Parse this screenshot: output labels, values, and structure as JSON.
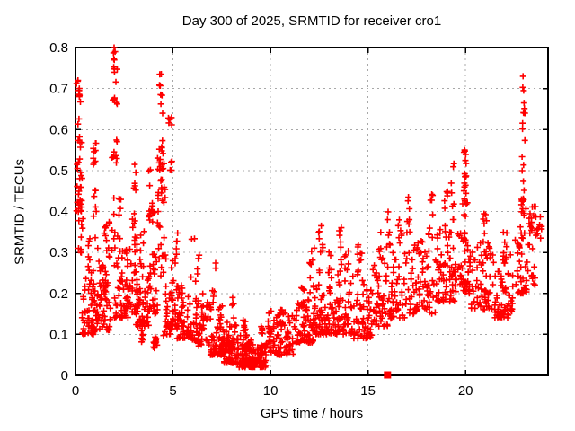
{
  "chart_data": {
    "type": "scatter",
    "title": "Day 300 of 2025, SRMTID for receiver cro1",
    "xlabel": "GPS time / hours",
    "ylabel": "SRMTID / TECUs",
    "xlim": [
      0,
      24.23
    ],
    "ylim": [
      0,
      0.8
    ],
    "x_ticks": [
      0,
      5,
      10,
      15,
      20
    ],
    "x_tick_labels": [
      "0",
      "5",
      "10",
      "15",
      "20"
    ],
    "y_ticks": [
      0,
      0.1,
      0.2,
      0.3,
      0.4,
      0.5,
      0.6,
      0.7,
      0.8
    ],
    "y_tick_labels": [
      "0",
      "0.1",
      "0.2",
      "0.3",
      "0.4",
      "0.5",
      "0.6",
      "0.7",
      "0.8"
    ],
    "grid": true,
    "grid_style": "dotted",
    "legend": "none",
    "marker": {
      "symbol": "plus",
      "color": "#ff0000",
      "size": 7
    },
    "colors": {
      "frame": "#000000",
      "grid": "#a8a8a8",
      "text": "#000000",
      "background": "#ffffff"
    },
    "special_points": [
      {
        "x": 16,
        "y": 0,
        "symbol": "filled-square",
        "color": "#ff0000",
        "size": 8
      }
    ],
    "anchor_points": [
      [
        1.98,
        0.8
      ],
      [
        2.03,
        0.79
      ],
      [
        1.99,
        0.77
      ],
      [
        2.0,
        0.74
      ],
      [
        0.13,
        0.72
      ],
      [
        0.2,
        0.7
      ],
      [
        0.17,
        0.695
      ],
      [
        0.1,
        0.505
      ],
      [
        0.15,
        0.52
      ],
      [
        4.32,
        0.735
      ],
      [
        22.95,
        0.73
      ],
      [
        22.98,
        0.695
      ],
      [
        23.0,
        0.665
      ],
      [
        19.95,
        0.55
      ],
      [
        16.0,
        0.38
      ]
    ],
    "cluster_format": "[x_start_hours, x_end_hours, y_min_TECU, y_max_TECU, point_count, vertical_distribution(b=bottom-heavy,u=uniform,m=middle,t=top-heavy)]",
    "seed": 7,
    "point_clusters": [
      [
        0.05,
        0.35,
        0.4,
        0.58,
        26,
        "b"
      ],
      [
        0.05,
        0.3,
        0.58,
        0.72,
        10,
        "u"
      ],
      [
        0.1,
        0.45,
        0.28,
        0.4,
        10,
        "u"
      ],
      [
        0.3,
        1.0,
        0.1,
        0.26,
        55,
        "b"
      ],
      [
        0.55,
        0.75,
        0.26,
        0.34,
        6,
        "u"
      ],
      [
        0.85,
        1.1,
        0.48,
        0.58,
        9,
        "u"
      ],
      [
        0.9,
        1.15,
        0.3,
        0.46,
        8,
        "u"
      ],
      [
        1.0,
        1.8,
        0.11,
        0.28,
        65,
        "b"
      ],
      [
        1.45,
        1.75,
        0.28,
        0.42,
        12,
        "u"
      ],
      [
        1.9,
        2.15,
        0.55,
        0.8,
        13,
        "u"
      ],
      [
        1.85,
        2.2,
        0.3,
        0.55,
        12,
        "u"
      ],
      [
        2.0,
        2.7,
        0.14,
        0.32,
        55,
        "b"
      ],
      [
        2.15,
        2.35,
        0.32,
        0.44,
        7,
        "u"
      ],
      [
        2.9,
        3.15,
        0.3,
        0.52,
        16,
        "u"
      ],
      [
        2.6,
        3.2,
        0.15,
        0.32,
        35,
        "b"
      ],
      [
        3.1,
        3.8,
        0.12,
        0.26,
        45,
        "b"
      ],
      [
        3.3,
        3.6,
        0.26,
        0.36,
        8,
        "u"
      ],
      [
        3.3,
        3.5,
        0.08,
        0.12,
        6,
        "u"
      ],
      [
        3.75,
        4.05,
        0.3,
        0.52,
        16,
        "m"
      ],
      [
        3.7,
        4.2,
        0.15,
        0.3,
        28,
        "b"
      ],
      [
        3.95,
        4.2,
        0.06,
        0.1,
        12,
        "m"
      ],
      [
        4.2,
        4.6,
        0.4,
        0.62,
        30,
        "m"
      ],
      [
        4.25,
        4.5,
        0.62,
        0.74,
        8,
        "u"
      ],
      [
        4.2,
        4.7,
        0.22,
        0.4,
        16,
        "u"
      ],
      [
        4.5,
        5.0,
        0.085,
        0.13,
        10,
        "u"
      ],
      [
        4.6,
        5.2,
        0.12,
        0.3,
        40,
        "b"
      ],
      [
        4.75,
        4.95,
        0.5,
        0.63,
        9,
        "u"
      ],
      [
        5.1,
        5.3,
        0.28,
        0.36,
        6,
        "u"
      ],
      [
        5.2,
        6.0,
        0.09,
        0.22,
        55,
        "b"
      ],
      [
        5.9,
        6.35,
        0.22,
        0.35,
        10,
        "u"
      ],
      [
        6.0,
        6.9,
        0.07,
        0.2,
        60,
        "b"
      ],
      [
        6.9,
        7.6,
        0.05,
        0.17,
        60,
        "b"
      ],
      [
        7.0,
        7.2,
        0.17,
        0.28,
        6,
        "u"
      ],
      [
        7.6,
        8.3,
        0.03,
        0.13,
        70,
        "b"
      ],
      [
        8.0,
        8.2,
        0.13,
        0.2,
        5,
        "u"
      ],
      [
        8.3,
        9.0,
        0.02,
        0.1,
        80,
        "b"
      ],
      [
        8.55,
        8.75,
        0.1,
        0.145,
        8,
        "u"
      ],
      [
        9.0,
        9.8,
        0.02,
        0.08,
        80,
        "b"
      ],
      [
        9.5,
        9.7,
        0.08,
        0.12,
        6,
        "u"
      ],
      [
        9.85,
        10.15,
        0.04,
        0.17,
        22,
        "m"
      ],
      [
        10.15,
        11.2,
        0.05,
        0.15,
        65,
        "b"
      ],
      [
        10.5,
        10.75,
        0.12,
        0.16,
        10,
        "u"
      ],
      [
        11.2,
        12.2,
        0.08,
        0.19,
        65,
        "b"
      ],
      [
        11.55,
        11.75,
        0.17,
        0.23,
        6,
        "u"
      ],
      [
        12.0,
        12.25,
        0.2,
        0.33,
        9,
        "u"
      ],
      [
        12.2,
        13.2,
        0.1,
        0.22,
        65,
        "b"
      ],
      [
        12.45,
        12.7,
        0.22,
        0.37,
        11,
        "u"
      ],
      [
        12.95,
        13.15,
        0.22,
        0.31,
        7,
        "u"
      ],
      [
        13.2,
        14.2,
        0.1,
        0.25,
        65,
        "b"
      ],
      [
        13.45,
        13.65,
        0.25,
        0.37,
        9,
        "u"
      ],
      [
        13.8,
        14.0,
        0.25,
        0.31,
        6,
        "u"
      ],
      [
        14.2,
        15.2,
        0.09,
        0.25,
        65,
        "b"
      ],
      [
        14.45,
        14.7,
        0.25,
        0.34,
        9,
        "u"
      ],
      [
        15.2,
        16.2,
        0.12,
        0.28,
        55,
        "b"
      ],
      [
        15.55,
        15.75,
        0.28,
        0.36,
        7,
        "u"
      ],
      [
        15.95,
        16.15,
        0.3,
        0.42,
        7,
        "u"
      ],
      [
        16.2,
        17.3,
        0.14,
        0.3,
        55,
        "b"
      ],
      [
        16.55,
        16.75,
        0.3,
        0.4,
        7,
        "u"
      ],
      [
        16.95,
        17.15,
        0.32,
        0.46,
        8,
        "u"
      ],
      [
        17.3,
        18.5,
        0.15,
        0.33,
        65,
        "b"
      ],
      [
        18.1,
        18.35,
        0.33,
        0.47,
        9,
        "u"
      ],
      [
        18.5,
        19.5,
        0.18,
        0.36,
        65,
        "b"
      ],
      [
        18.9,
        19.1,
        0.36,
        0.45,
        7,
        "u"
      ],
      [
        19.25,
        19.45,
        0.38,
        0.52,
        8,
        "u"
      ],
      [
        19.5,
        20.3,
        0.2,
        0.35,
        45,
        "b"
      ],
      [
        19.85,
        20.1,
        0.32,
        0.5,
        20,
        "t"
      ],
      [
        19.9,
        20.05,
        0.5,
        0.56,
        5,
        "u"
      ],
      [
        20.3,
        21.5,
        0.16,
        0.33,
        65,
        "b"
      ],
      [
        20.9,
        21.1,
        0.33,
        0.4,
        6,
        "u"
      ],
      [
        21.5,
        22.5,
        0.14,
        0.3,
        65,
        "b"
      ],
      [
        21.9,
        22.2,
        0.28,
        0.35,
        8,
        "u"
      ],
      [
        22.5,
        23.2,
        0.2,
        0.37,
        40,
        "b"
      ],
      [
        22.85,
        23.1,
        0.37,
        0.48,
        14,
        "u"
      ],
      [
        22.9,
        23.05,
        0.48,
        0.73,
        11,
        "u"
      ],
      [
        23.2,
        23.9,
        0.3,
        0.42,
        30,
        "m"
      ],
      [
        23.3,
        23.6,
        0.22,
        0.3,
        8,
        "u"
      ]
    ]
  }
}
